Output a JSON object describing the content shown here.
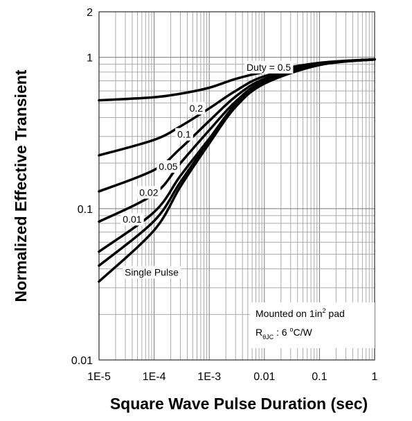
{
  "chart_data": {
    "type": "line",
    "x_scale": "log",
    "y_scale": "log",
    "xlim": [
      1e-05,
      1
    ],
    "ylim": [
      0.01,
      2
    ],
    "xlabel": "Square Wave Pulse Duration (sec)",
    "ylabel": "Normalized Effective Transient",
    "x_tick_labels": [
      "1E-5",
      "1E-4",
      "1E-3",
      "0.01",
      "0.1",
      "1"
    ],
    "y_tick_labels": [
      "0.01",
      "0.1",
      "1",
      "2"
    ],
    "grid": true,
    "series": [
      {
        "name": "Duty = 0.5",
        "label": "Duty =  0.5",
        "x": [
          1e-05,
          0.0001,
          0.0003,
          0.001,
          0.003,
          0.01,
          0.1,
          1
        ],
        "y": [
          0.52,
          0.545,
          0.575,
          0.63,
          0.72,
          0.8,
          0.92,
          0.97
        ]
      },
      {
        "name": "0.2",
        "label": "0.2",
        "x": [
          1e-05,
          0.0001,
          0.0003,
          0.001,
          0.003,
          0.01,
          0.1,
          1
        ],
        "y": [
          0.225,
          0.285,
          0.35,
          0.46,
          0.6,
          0.75,
          0.91,
          0.97
        ]
      },
      {
        "name": "0.1",
        "label": "0.1",
        "x": [
          1e-05,
          0.0001,
          0.0003,
          0.001,
          0.003,
          0.01,
          0.1,
          1
        ],
        "y": [
          0.13,
          0.18,
          0.25,
          0.38,
          0.55,
          0.72,
          0.9,
          0.97
        ]
      },
      {
        "name": "0.05",
        "label": "0.05",
        "x": [
          1e-05,
          0.0001,
          0.0003,
          0.001,
          0.003,
          0.01,
          0.1,
          1
        ],
        "y": [
          0.082,
          0.125,
          0.2,
          0.33,
          0.51,
          0.7,
          0.9,
          0.97
        ]
      },
      {
        "name": "0.02",
        "label": "0.02",
        "x": [
          1e-05,
          0.0001,
          0.0003,
          0.001,
          0.003,
          0.01,
          0.1,
          1
        ],
        "y": [
          0.052,
          0.095,
          0.165,
          0.29,
          0.49,
          0.69,
          0.9,
          0.97
        ]
      },
      {
        "name": "0.01",
        "label": "0.01",
        "x": [
          1e-05,
          0.0001,
          0.0003,
          0.001,
          0.003,
          0.01,
          0.1,
          1
        ],
        "y": [
          0.042,
          0.083,
          0.15,
          0.28,
          0.48,
          0.68,
          0.89,
          0.97
        ]
      },
      {
        "name": "Single Pulse",
        "label": "Single Pulse",
        "x": [
          1e-05,
          0.0001,
          0.0003,
          0.001,
          0.003,
          0.01,
          0.1,
          1
        ],
        "y": [
          0.033,
          0.072,
          0.14,
          0.27,
          0.47,
          0.67,
          0.89,
          0.97
        ]
      }
    ],
    "annotation": {
      "line1_main": "Mounted on 1in",
      "line1_sup": "2",
      "line1_tail": " pad",
      "line2_main": "R",
      "line2_sub": "θJC",
      "line2_value": " : 6 ",
      "line2_deg": "o",
      "line2_unit": "C/W"
    }
  }
}
